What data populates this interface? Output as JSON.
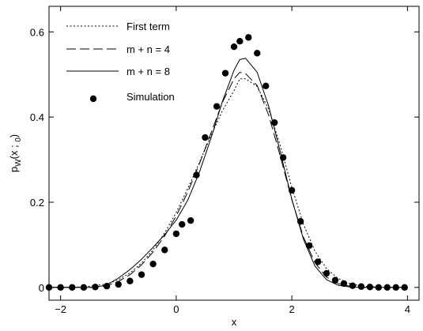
{
  "chart_data": {
    "type": "line",
    "title": "",
    "xlabel": "x",
    "ylabel": {
      "main": "p",
      "sub1": "W",
      "mid": "(x ; ",
      "sub2": "0",
      "end": ")"
    },
    "xlim": [
      -2.2,
      4.2
    ],
    "ylim": [
      -0.03,
      0.66
    ],
    "xticks": [
      -2,
      0,
      2,
      4
    ],
    "xtick_labels": [
      "−2",
      "0",
      "2",
      "4"
    ],
    "yticks": [
      0,
      0.2,
      0.4,
      0.6
    ],
    "ytick_labels": [
      "0",
      "0.2",
      "0.4",
      "0.6"
    ],
    "grid": false,
    "legend": "top-left",
    "series": [
      {
        "name": "First term",
        "style": "dotted",
        "points": [
          [
            -2.2,
            0
          ],
          [
            -1.6,
            0.001
          ],
          [
            -1.2,
            0.008
          ],
          [
            -1.0,
            0.018
          ],
          [
            -0.8,
            0.034
          ],
          [
            -0.6,
            0.057
          ],
          [
            -0.4,
            0.088
          ],
          [
            -0.2,
            0.128
          ],
          [
            0,
            0.176
          ],
          [
            0.2,
            0.232
          ],
          [
            0.4,
            0.293
          ],
          [
            0.6,
            0.356
          ],
          [
            0.8,
            0.415
          ],
          [
            1.0,
            0.462
          ],
          [
            1.1,
            0.49
          ],
          [
            1.2,
            0.49
          ],
          [
            1.4,
            0.472
          ],
          [
            1.6,
            0.418
          ],
          [
            1.8,
            0.333
          ],
          [
            2.0,
            0.235
          ],
          [
            2.2,
            0.148
          ],
          [
            2.4,
            0.085
          ],
          [
            2.6,
            0.044
          ],
          [
            2.8,
            0.021
          ],
          [
            3.0,
            0.009
          ],
          [
            3.2,
            0.003
          ],
          [
            3.6,
            0.0
          ],
          [
            4.0,
            0.0
          ]
        ]
      },
      {
        "name": "m + n = 4",
        "style": "dashed",
        "points": [
          [
            -2.2,
            0
          ],
          [
            -1.4,
            0.0
          ],
          [
            -1.2,
            0.004
          ],
          [
            -1.0,
            0.014
          ],
          [
            -0.8,
            0.03
          ],
          [
            -0.6,
            0.053
          ],
          [
            -0.4,
            0.083
          ],
          [
            -0.2,
            0.121
          ],
          [
            0,
            0.168
          ],
          [
            0.2,
            0.224
          ],
          [
            0.4,
            0.29
          ],
          [
            0.6,
            0.362
          ],
          [
            0.8,
            0.435
          ],
          [
            1.0,
            0.49
          ],
          [
            1.1,
            0.505
          ],
          [
            1.2,
            0.502
          ],
          [
            1.4,
            0.474
          ],
          [
            1.6,
            0.404
          ],
          [
            1.8,
            0.308
          ],
          [
            2.0,
            0.206
          ],
          [
            2.2,
            0.118
          ],
          [
            2.4,
            0.058
          ],
          [
            2.6,
            0.024
          ],
          [
            2.8,
            0.009
          ],
          [
            3.0,
            0.003
          ],
          [
            3.2,
            0.0
          ],
          [
            4.0,
            0.0
          ]
        ]
      },
      {
        "name": "m + n = 8",
        "style": "solid",
        "points": [
          [
            -2.2,
            0
          ],
          [
            -1.4,
            0.0
          ],
          [
            -1.2,
            0.006
          ],
          [
            -1.0,
            0.022
          ],
          [
            -0.8,
            0.042
          ],
          [
            -0.6,
            0.066
          ],
          [
            -0.4,
            0.094
          ],
          [
            -0.2,
            0.124
          ],
          [
            0,
            0.158
          ],
          [
            0.2,
            0.205
          ],
          [
            0.4,
            0.27
          ],
          [
            0.6,
            0.35
          ],
          [
            0.8,
            0.437
          ],
          [
            1.0,
            0.51
          ],
          [
            1.1,
            0.535
          ],
          [
            1.2,
            0.538
          ],
          [
            1.4,
            0.505
          ],
          [
            1.6,
            0.425
          ],
          [
            1.8,
            0.318
          ],
          [
            2.0,
            0.207
          ],
          [
            2.2,
            0.113
          ],
          [
            2.4,
            0.05
          ],
          [
            2.6,
            0.018
          ],
          [
            2.8,
            0.005
          ],
          [
            3.0,
            0.001
          ],
          [
            3.2,
            0.0
          ],
          [
            4.0,
            0.0
          ]
        ]
      },
      {
        "name": "Simulation",
        "style": "markers",
        "points": [
          [
            -2.2,
            0
          ],
          [
            -2.0,
            0
          ],
          [
            -1.8,
            0
          ],
          [
            -1.6,
            0
          ],
          [
            -1.4,
            0.001
          ],
          [
            -1.2,
            0.003
          ],
          [
            -1.0,
            0.007
          ],
          [
            -0.8,
            0.015
          ],
          [
            -0.6,
            0.03
          ],
          [
            -0.4,
            0.055
          ],
          [
            -0.2,
            0.088
          ],
          [
            0.0,
            0.126
          ],
          [
            0.1,
            0.148
          ],
          [
            0.25,
            0.157
          ],
          [
            0.35,
            0.264
          ],
          [
            0.5,
            0.352
          ],
          [
            0.7,
            0.425
          ],
          [
            0.85,
            0.503
          ],
          [
            1.0,
            0.565
          ],
          [
            1.1,
            0.578
          ],
          [
            1.25,
            0.587
          ],
          [
            1.4,
            0.55
          ],
          [
            1.55,
            0.473
          ],
          [
            1.7,
            0.387
          ],
          [
            1.85,
            0.305
          ],
          [
            2.0,
            0.228
          ],
          [
            2.15,
            0.155
          ],
          [
            2.3,
            0.098
          ],
          [
            2.45,
            0.06
          ],
          [
            2.6,
            0.033
          ],
          [
            2.75,
            0.017
          ],
          [
            2.9,
            0.009
          ],
          [
            3.05,
            0.004
          ],
          [
            3.2,
            0.002
          ],
          [
            3.35,
            0.001
          ],
          [
            3.5,
            0
          ],
          [
            3.65,
            0
          ],
          [
            3.8,
            0
          ],
          [
            3.95,
            0
          ]
        ]
      }
    ]
  }
}
